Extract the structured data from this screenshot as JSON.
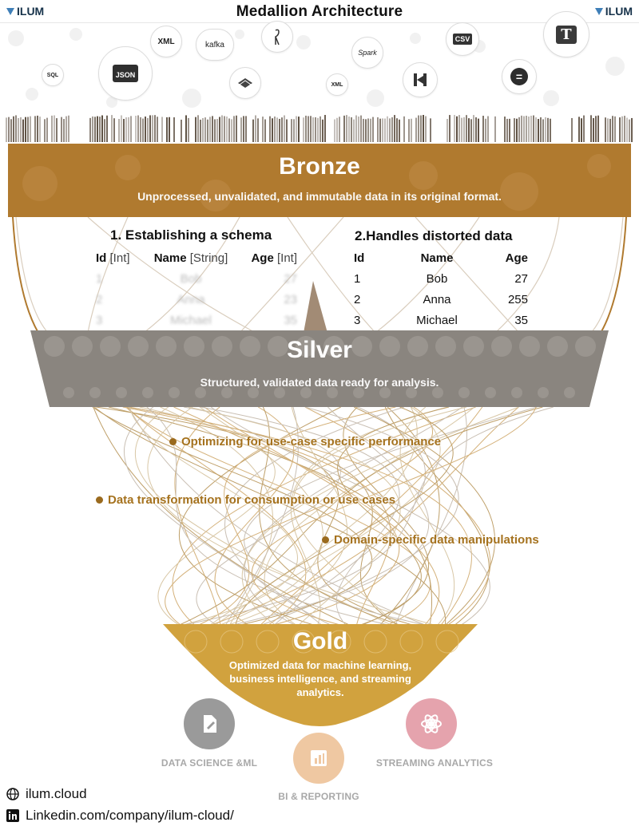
{
  "header": {
    "brand_left": "ILUM",
    "brand_right": "ILUM",
    "title": "Medallion Architecture"
  },
  "sources": [
    {
      "name": "xml-icon",
      "label": "XML"
    },
    {
      "name": "kafka-icon",
      "label": "kafka"
    },
    {
      "name": "flamingo-icon",
      "label": ""
    },
    {
      "name": "csv-icon",
      "label": "CSV"
    },
    {
      "name": "text-icon",
      "label": "T"
    },
    {
      "name": "sql-icon",
      "label": "SQL"
    },
    {
      "name": "json-icon",
      "label": "JSON"
    },
    {
      "name": "layers-icon",
      "label": ""
    },
    {
      "name": "xml-file-icon",
      "label": "XML"
    },
    {
      "name": "spark-icon",
      "label": "Spark"
    },
    {
      "name": "hadoop-icon",
      "label": ""
    },
    {
      "name": "equals-icon",
      "label": "="
    }
  ],
  "bronze": {
    "title": "Bronze",
    "subtitle": "Unprocessed, unvalidated, and immutable data in its original format.",
    "color": "#b07a2f"
  },
  "schema_table": {
    "heading": "1. Establishing a schema",
    "columns": [
      {
        "name": "Id",
        "type": "[Int]"
      },
      {
        "name": "Name",
        "type": "[String]"
      },
      {
        "name": "Age",
        "type": "[Int]"
      }
    ],
    "rows": [
      [
        "1",
        "Bob",
        "27"
      ],
      [
        "2",
        "Anna",
        "23"
      ],
      [
        "3",
        "Michael",
        "35"
      ]
    ]
  },
  "distorted_table": {
    "heading": "2.Handles distorted data",
    "columns": [
      "Id",
      "Name",
      "Age"
    ],
    "rows": [
      [
        "1",
        "Bob",
        "27"
      ],
      [
        "2",
        "Anna",
        "255"
      ],
      [
        "3",
        "Michael",
        "35"
      ]
    ]
  },
  "silver": {
    "title": "Silver",
    "subtitle": "Structured, validated data ready for analysis.",
    "color": "#8a857f"
  },
  "notes": [
    "Optimizing for use-case specific performance",
    "Data transformation for consumption or use cases",
    "Domain-specific data manipulations"
  ],
  "gold": {
    "title": "Gold",
    "subtitle_lines": [
      "Optimized data for machine learning,",
      "business intelligence, and streaming",
      "analytics."
    ],
    "color": "#d1a23e"
  },
  "consumers": [
    {
      "label": "DATA SCIENCE &ML",
      "color": "#9a9a9a"
    },
    {
      "label": "BI & REPORTING",
      "color": "#efc8a2"
    },
    {
      "label": "STREAMING ANALYTICS",
      "color": "#e5a3ad"
    }
  ],
  "footer": {
    "website": "ilum.cloud",
    "linkedin": "Linkedin.com/company/ilum-cloud/"
  }
}
